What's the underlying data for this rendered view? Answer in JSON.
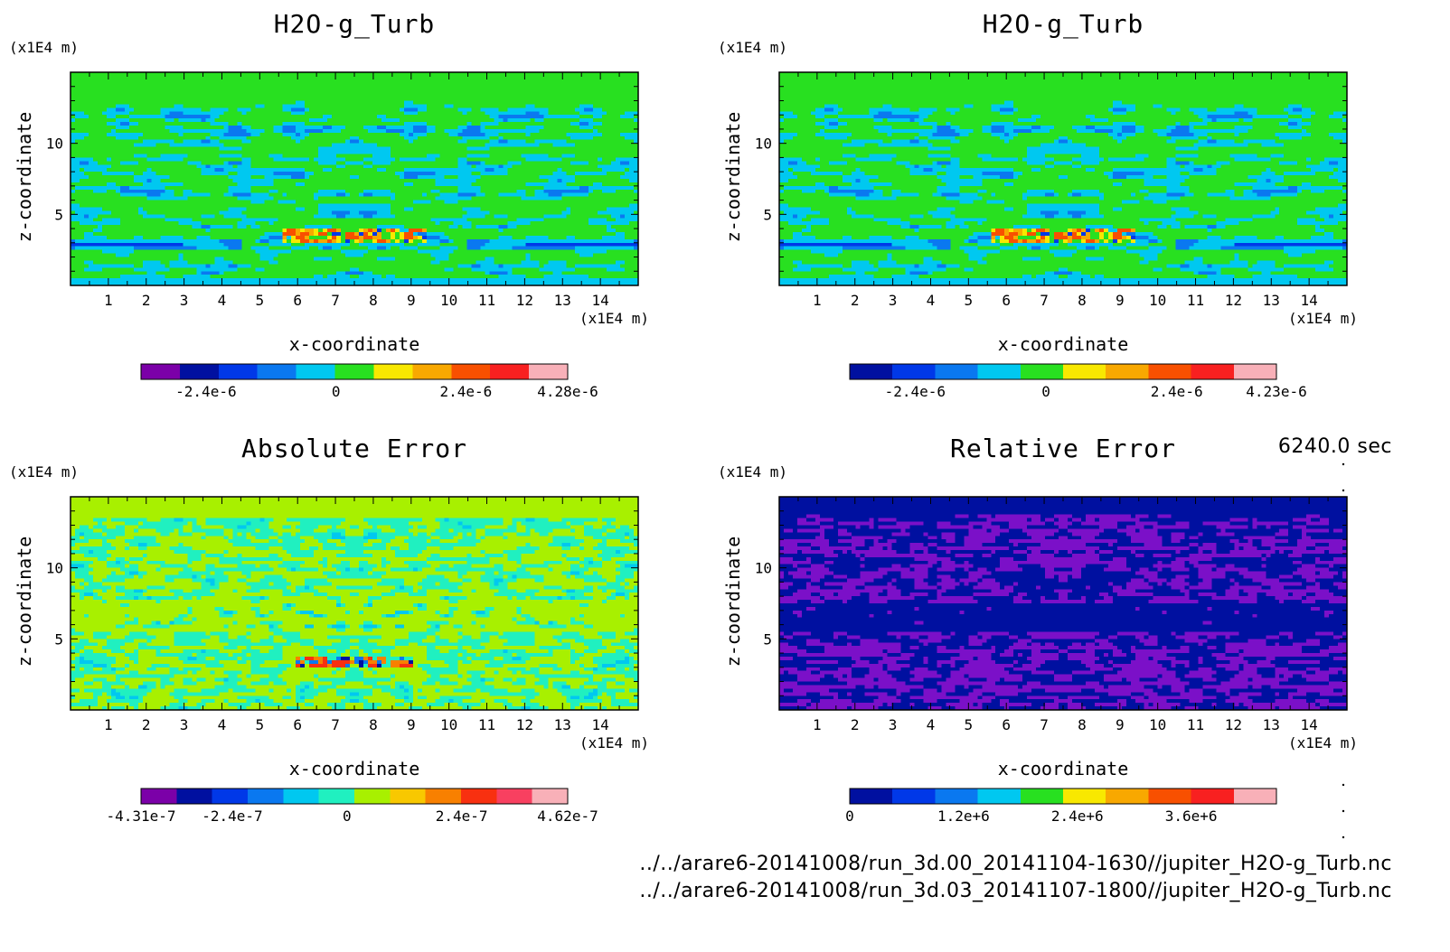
{
  "time_label": "6240.0 sec",
  "files": [
    "../../arare6-20141008/run_3d.00_20141104-1630//jupiter_H2O-g_Turb.nc",
    "../../arare6-20141008/run_3d.03_20141107-1800//jupiter_H2O-g_Turb.nc"
  ],
  "chart_data": [
    {
      "type": "heatmap",
      "title": "H2O-g_Turb",
      "xlabel": "x-coordinate",
      "ylabel": "z-coordinate",
      "x_unit": "(x1E4 m)",
      "y_unit": "(x1E4 m)",
      "xlim": [
        0,
        15
      ],
      "ylim": [
        0,
        15
      ],
      "xticks": [
        1,
        2,
        3,
        4,
        5,
        6,
        7,
        8,
        9,
        10,
        11,
        12,
        13,
        14
      ],
      "yticks": [
        5,
        10
      ],
      "field": "moisture",
      "colorbar": {
        "colors": [
          "#7b00a8",
          "#0010a0",
          "#0038e8",
          "#0a78f0",
          "#00c8f0",
          "#28e020",
          "#f8e800",
          "#f8a800",
          "#f85000",
          "#f82020",
          "#f8b0b8"
        ],
        "ticks": [
          {
            "label": "-2.4e-6",
            "value": -2.4e-06
          },
          {
            "label": "0",
            "value": 0
          },
          {
            "label": "2.4e-6",
            "value": 2.4e-06
          },
          {
            "label": "4.28e-6",
            "value": 4.28e-06
          }
        ],
        "min": -3.6e-06,
        "max": 4.28e-06
      }
    },
    {
      "type": "heatmap",
      "title": "H2O-g_Turb",
      "xlabel": "x-coordinate",
      "ylabel": "z-coordinate",
      "x_unit": "(x1E4 m)",
      "y_unit": "(x1E4 m)",
      "xlim": [
        0,
        15
      ],
      "ylim": [
        0,
        15
      ],
      "xticks": [
        1,
        2,
        3,
        4,
        5,
        6,
        7,
        8,
        9,
        10,
        11,
        12,
        13,
        14
      ],
      "yticks": [
        5,
        10
      ],
      "field": "moisture",
      "colorbar": {
        "colors": [
          "#0010a0",
          "#0038e8",
          "#0a78f0",
          "#00c8f0",
          "#28e020",
          "#f8e800",
          "#f8a800",
          "#f85000",
          "#f82020",
          "#f8b0b8"
        ],
        "ticks": [
          {
            "label": "-2.4e-6",
            "value": -2.4e-06
          },
          {
            "label": "0",
            "value": 0
          },
          {
            "label": "2.4e-6",
            "value": 2.4e-06
          },
          {
            "label": "4.23e-6",
            "value": 4.23e-06
          }
        ],
        "min": -3.6e-06,
        "max": 4.23e-06
      }
    },
    {
      "type": "heatmap",
      "title": "Absolute Error",
      "xlabel": "x-coordinate",
      "ylabel": "z-coordinate",
      "x_unit": "(x1E4 m)",
      "y_unit": "(x1E4 m)",
      "xlim": [
        0,
        15
      ],
      "ylim": [
        0,
        15
      ],
      "xticks": [
        1,
        2,
        3,
        4,
        5,
        6,
        7,
        8,
        9,
        10,
        11,
        12,
        13,
        14
      ],
      "yticks": [
        5,
        10
      ],
      "field": "abs",
      "colorbar": {
        "colors": [
          "#7b00a8",
          "#0010a0",
          "#0038e8",
          "#0a78f0",
          "#00c8f0",
          "#20f0c0",
          "#a8f000",
          "#f8c800",
          "#f88000",
          "#f83010",
          "#f84060",
          "#f8b0b8"
        ],
        "ticks": [
          {
            "label": "-4.31e-7",
            "value": -4.31e-07
          },
          {
            "label": "-2.4e-7",
            "value": -2.4e-07
          },
          {
            "label": "0",
            "value": 0
          },
          {
            "label": "2.4e-7",
            "value": 2.4e-07
          },
          {
            "label": "4.62e-7",
            "value": 4.62e-07
          }
        ],
        "min": -4.31e-07,
        "max": 4.62e-07
      }
    },
    {
      "type": "heatmap",
      "title": "Relative Error",
      "xlabel": "x-coordinate",
      "ylabel": "z-coordinate",
      "x_unit": "(x1E4 m)",
      "y_unit": "(x1E4 m)",
      "xlim": [
        0,
        15
      ],
      "ylim": [
        0,
        15
      ],
      "xticks": [
        1,
        2,
        3,
        4,
        5,
        6,
        7,
        8,
        9,
        10,
        11,
        12,
        13,
        14
      ],
      "yticks": [
        5,
        10
      ],
      "field": "rel",
      "colorbar": {
        "colors": [
          "#0010a0",
          "#0038e8",
          "#0a78f0",
          "#00c8f0",
          "#28e020",
          "#f8e800",
          "#f8a800",
          "#f85000",
          "#f82020",
          "#f8b0b8"
        ],
        "ticks": [
          {
            "label": "0",
            "value": 0
          },
          {
            "label": "1.2e+6",
            "value": 1200000.0
          },
          {
            "label": "2.4e+6",
            "value": 2400000.0
          },
          {
            "label": "3.6e+6",
            "value": 3600000.0
          }
        ],
        "min": 0,
        "max": 4500000.0
      }
    }
  ]
}
